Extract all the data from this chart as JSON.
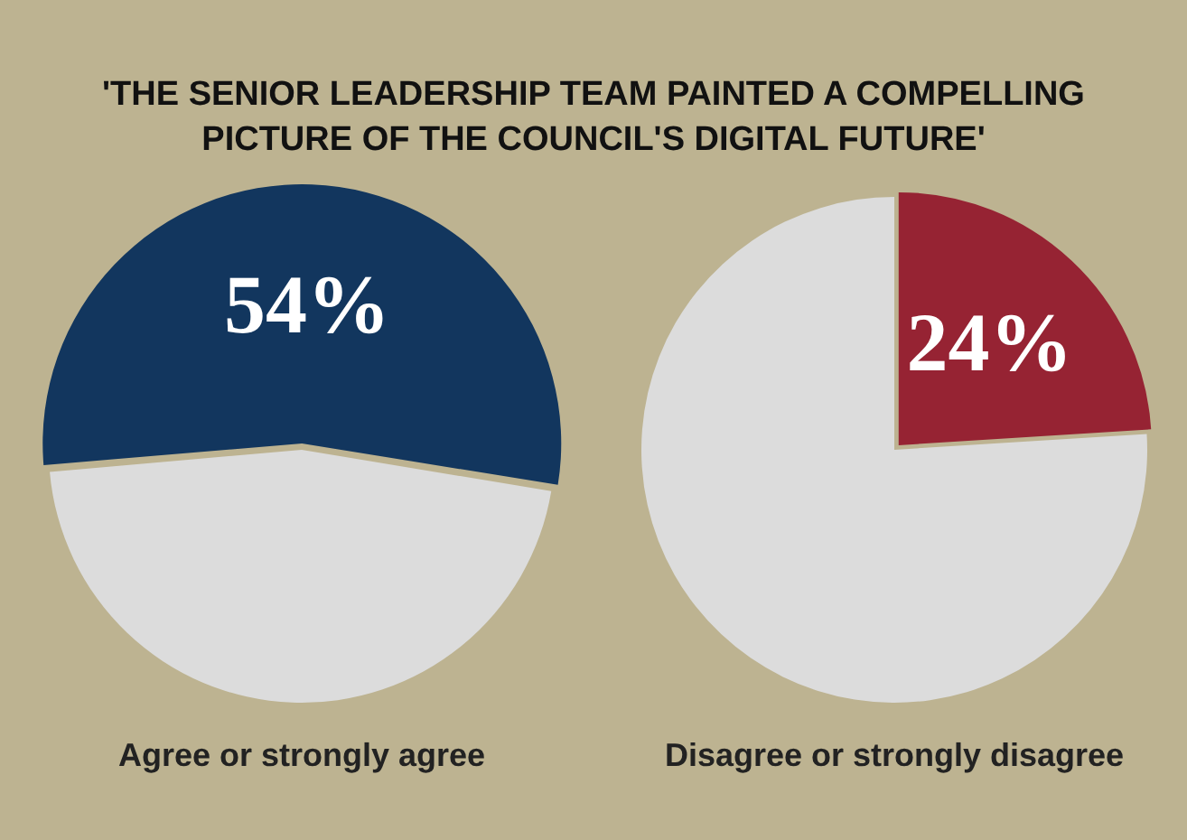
{
  "chart_data": [
    {
      "type": "pie",
      "title": "'THE SENIOR LEADERSHIP TEAM PAINTED A COMPELLING PICTURE OF THE COUNCIL'S DIGITAL FUTURE'",
      "xlabel": "Agree or strongly agree",
      "categories": [
        null,
        null
      ],
      "values": [
        54,
        46
      ],
      "colors": [
        "#12365e",
        "#dcdcdc"
      ],
      "value_labels": [
        "54%",
        null
      ]
    },
    {
      "type": "pie",
      "xlabel": "Disagree or strongly disagree",
      "categories": [
        null,
        null
      ],
      "values": [
        24,
        76
      ],
      "colors": [
        "#962333",
        "#dcdcdc"
      ],
      "value_labels": [
        "24%",
        null
      ]
    }
  ]
}
